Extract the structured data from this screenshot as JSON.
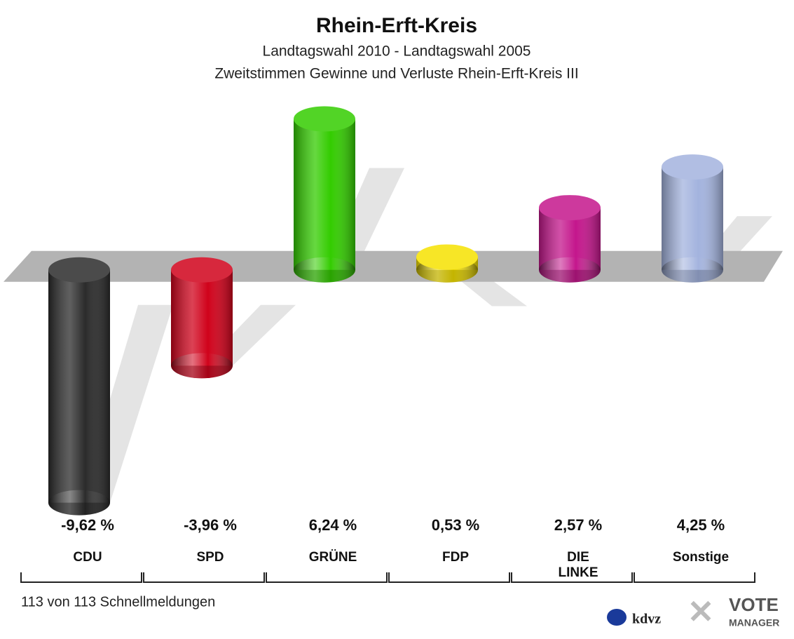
{
  "chart_data": {
    "type": "bar",
    "title": "Rhein-Erft-Kreis",
    "subtitle": [
      "Landtagswahl 2010 - Landtagswahl 2005",
      "Zweitstimmen Gewinne und Verluste Rhein-Erft-Kreis III"
    ],
    "categories": [
      "CDU",
      "SPD",
      "GRÜNE",
      "FDP",
      "DIE LINKE",
      "Sonstige"
    ],
    "values": [
      -9.62,
      -3.96,
      6.24,
      0.53,
      2.57,
      4.25
    ],
    "value_labels": [
      "-9,62 %",
      "-3,96 %",
      "6,24 %",
      "0,53 %",
      "2,57 %",
      "4,25 %"
    ],
    "colors": [
      "#2b2b2b",
      "#d0021b",
      "#33cc00",
      "#f5e100",
      "#c4168c",
      "#a3b3de"
    ],
    "ylim": [
      -10.5,
      7.5
    ]
  },
  "footer": "113 von 113 Schnellmeldungen",
  "logo": {
    "left": "kdvz",
    "right": [
      "VOTE",
      "MANAGER"
    ]
  }
}
